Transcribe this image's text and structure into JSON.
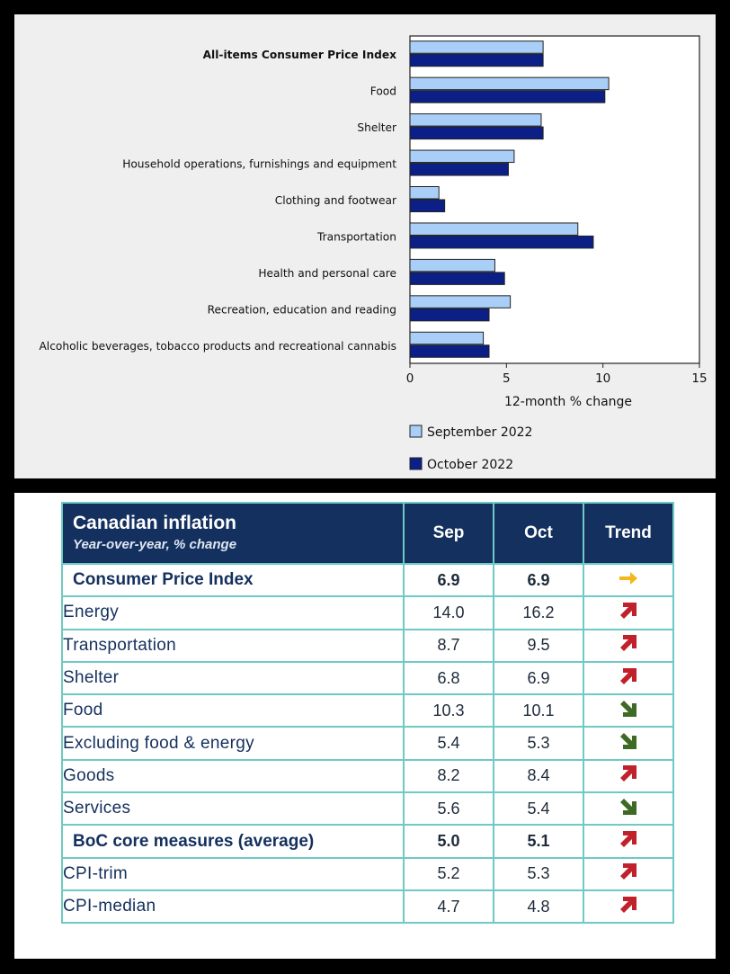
{
  "chart_data": {
    "type": "bar",
    "orientation": "horizontal",
    "categories": [
      "All-items Consumer Price Index",
      "Food",
      "Shelter",
      "Household operations, furnishings and equipment",
      "Clothing and footwear",
      "Transportation",
      "Health and personal care",
      "Recreation, education and reading",
      "Alcoholic beverages, tobacco products and recreational cannabis"
    ],
    "bold_category": "All-items Consumer Price Index",
    "series": [
      {
        "name": "September 2022",
        "color": "#a9cff8",
        "values": [
          6.9,
          10.3,
          6.8,
          5.4,
          1.5,
          8.7,
          4.4,
          5.2,
          3.8
        ]
      },
      {
        "name": "October 2022",
        "color": "#0c1f86",
        "values": [
          6.9,
          10.1,
          6.9,
          5.1,
          1.8,
          9.5,
          4.9,
          4.1,
          4.1
        ]
      }
    ],
    "xlabel": "12-month % change",
    "xlim": [
      0,
      15
    ],
    "xticks": [
      0,
      5,
      10,
      15
    ],
    "legend_position": "bottom"
  },
  "table": {
    "title": "Canadian inflation",
    "subtitle": "Year-over-year, % change",
    "columns": [
      "Sep",
      "Oct",
      "Trend"
    ],
    "rows": [
      {
        "label": "Consumer Price Index",
        "sep": "6.9",
        "oct": "6.9",
        "trend": "right-arrow-icon",
        "bold": true
      },
      {
        "label": "Energy",
        "sep": "14.0",
        "oct": "16.2",
        "trend": "up-arrow-icon",
        "bold": false
      },
      {
        "label": "Transportation",
        "sep": "8.7",
        "oct": "9.5",
        "trend": "up-arrow-icon",
        "bold": false
      },
      {
        "label": "Shelter",
        "sep": "6.8",
        "oct": "6.9",
        "trend": "up-arrow-icon",
        "bold": false
      },
      {
        "label": "Food",
        "sep": "10.3",
        "oct": "10.1",
        "trend": "down-arrow-icon",
        "bold": false
      },
      {
        "label": "Excluding food & energy",
        "sep": "5.4",
        "oct": "5.3",
        "trend": "down-arrow-icon",
        "bold": false
      },
      {
        "label": "Goods",
        "sep": "8.2",
        "oct": "8.4",
        "trend": "up-arrow-icon",
        "bold": false
      },
      {
        "label": "Services",
        "sep": "5.6",
        "oct": "5.4",
        "trend": "down-arrow-icon",
        "bold": false
      },
      {
        "label": "BoC core measures (average)",
        "sep": "5.0",
        "oct": "5.1",
        "trend": "up-arrow-icon",
        "bold": true
      },
      {
        "label": "CPI-trim",
        "sep": "5.2",
        "oct": "5.3",
        "trend": "up-arrow-icon",
        "bold": false
      },
      {
        "label": "CPI-median",
        "sep": "4.7",
        "oct": "4.8",
        "trend": "up-arrow-icon",
        "bold": false
      }
    ],
    "trend_colors": {
      "up": "#c0212a",
      "down": "#3d6b24",
      "flat": "#f3b71b"
    }
  }
}
